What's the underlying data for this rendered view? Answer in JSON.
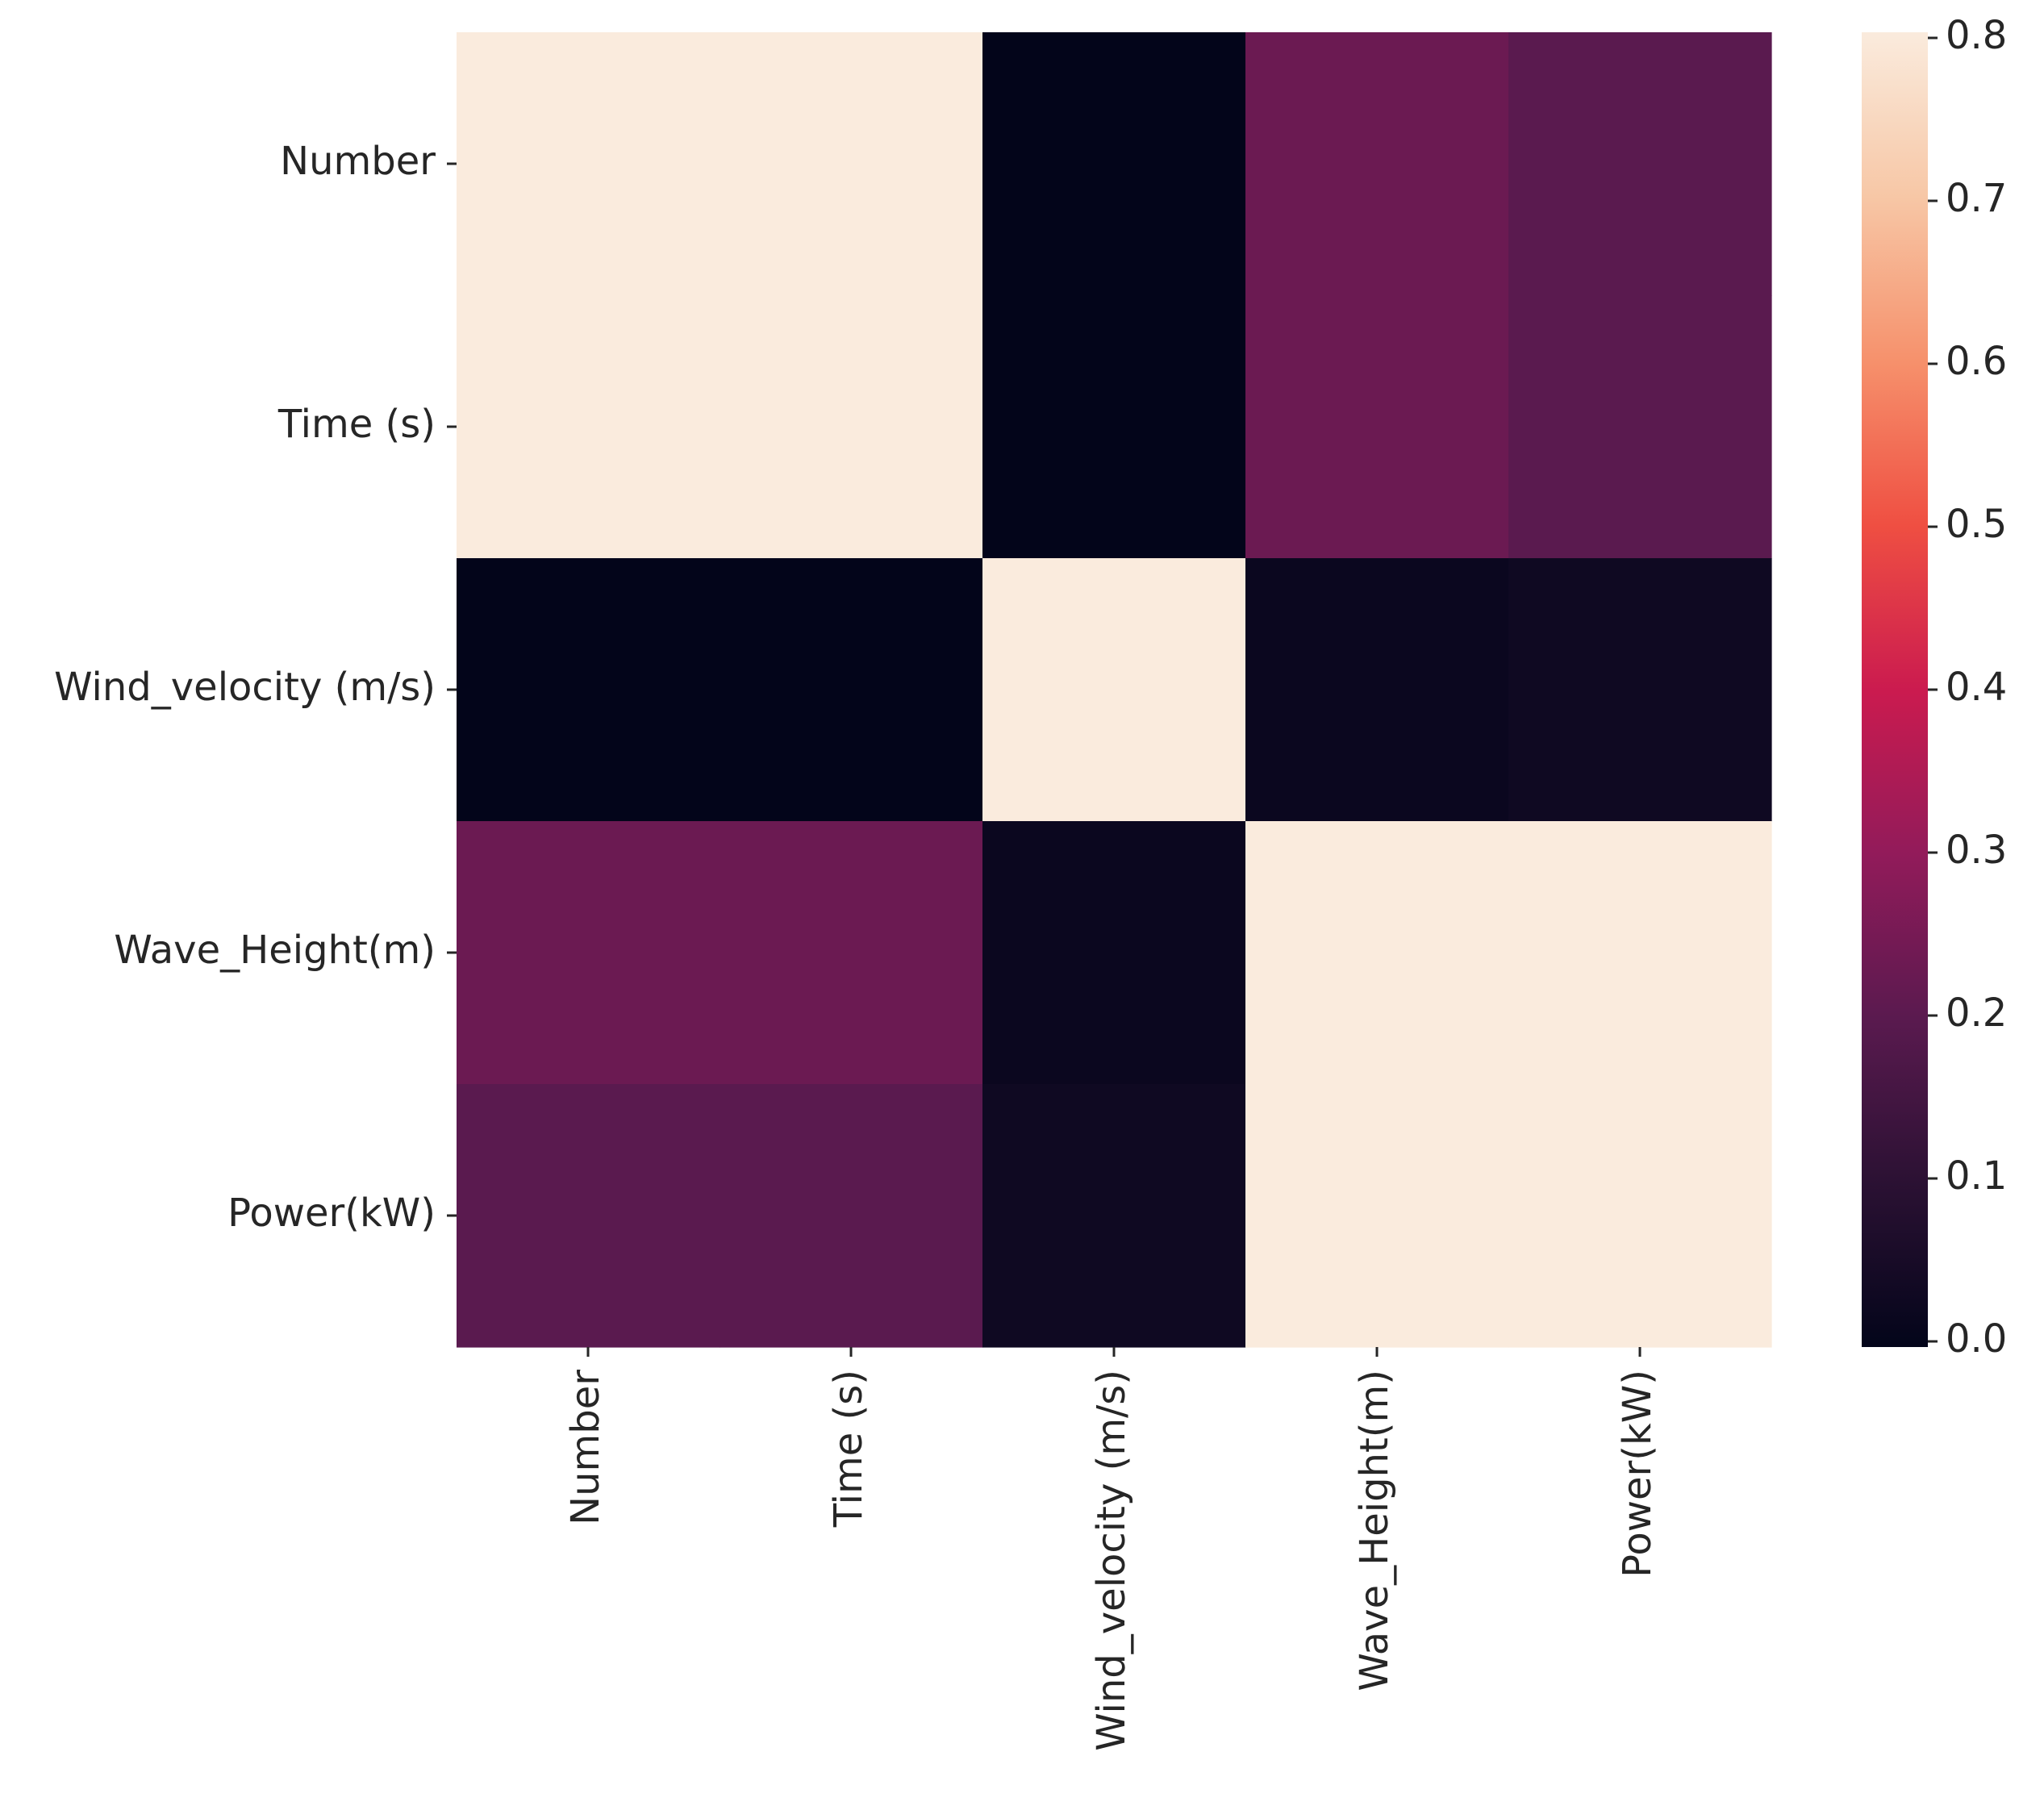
{
  "chart_data": {
    "type": "heatmap",
    "title": "",
    "xlabel": "",
    "ylabel": "",
    "row_labels": [
      "Number",
      "Time (s)",
      "Wind_velocity (m/s)",
      "Wave_Height(m)",
      "Power(kW)"
    ],
    "col_labels": [
      "Number",
      "Time (s)",
      "Wind_velocity (m/s)",
      "Wave_Height(m)",
      "Power(kW)"
    ],
    "values": [
      [
        1.0,
        1.0,
        0.0,
        0.23,
        0.2
      ],
      [
        1.0,
        1.0,
        0.0,
        0.23,
        0.2
      ],
      [
        0.0,
        0.0,
        1.0,
        0.02,
        0.03
      ],
      [
        0.23,
        0.23,
        0.02,
        1.0,
        1.0
      ],
      [
        0.2,
        0.2,
        0.03,
        1.0,
        1.0
      ]
    ],
    "colormap": "rocket",
    "vmin": 0.0,
    "vmax": 0.8,
    "colorbar": {
      "ticks": [
        0.0,
        0.1,
        0.2,
        0.3,
        0.4,
        0.5,
        0.6,
        0.7,
        0.8
      ],
      "tick_labels": [
        "0.0",
        "0.1",
        "0.2",
        "0.3",
        "0.4",
        "0.5",
        "0.6",
        "0.7",
        "0.8"
      ]
    },
    "grid": false,
    "legend": "colorbar-right"
  }
}
